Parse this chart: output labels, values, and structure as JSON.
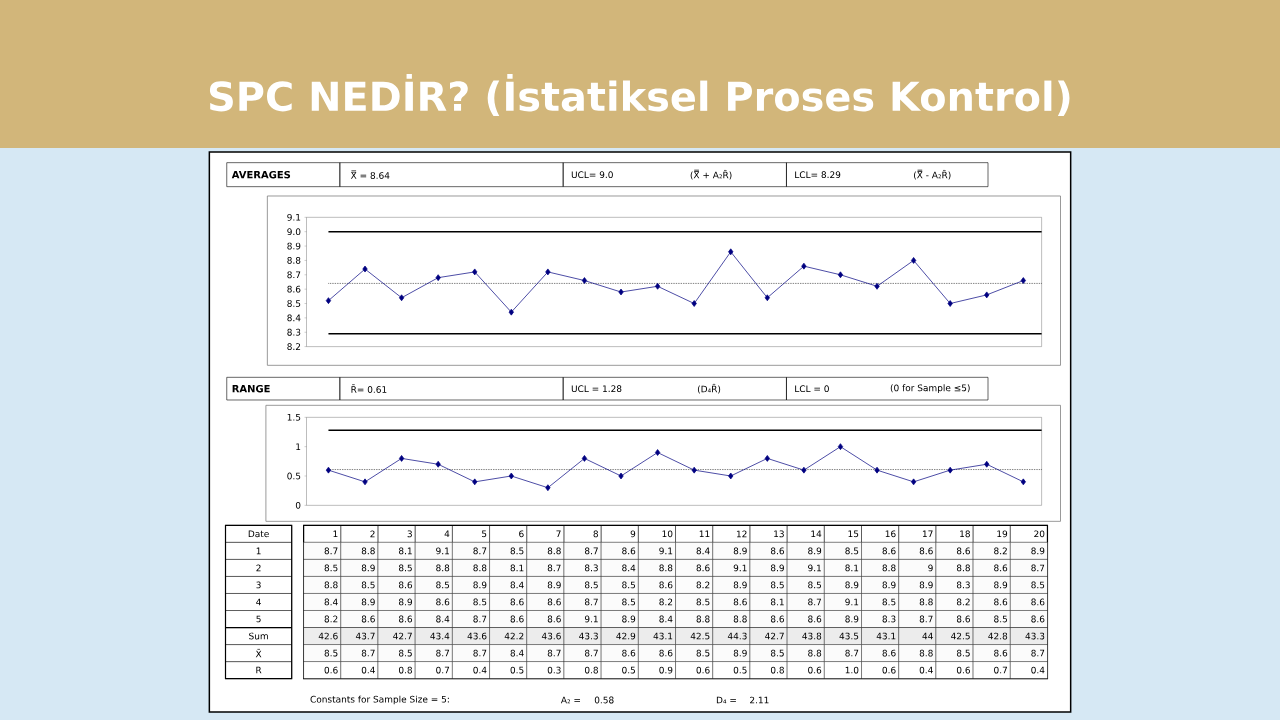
{
  "chart_data": [
    {
      "type": "line",
      "title": "SPC NEDİR? (İstatiksel Proses Kontrol)",
      "subtitle": "AVERAGES",
      "categories": [
        null,
        null,
        null,
        null,
        null,
        null,
        null,
        null,
        null,
        null,
        null,
        null,
        null,
        null,
        null,
        null,
        null,
        null,
        null,
        null
      ],
      "series": [
        {
          "color": "#000080",
          "values": [
            8.52,
            8.74,
            8.54,
            8.68,
            8.72,
            8.44,
            8.72,
            8.66,
            8.58,
            8.62,
            8.5,
            8.86,
            8.54,
            8.76,
            8.7,
            8.62,
            8.8,
            8.5,
            8.56,
            8.66
          ]
        }
      ],
      "ylim": [
        8.2,
        9.1
      ],
      "yticks": [
        8.2,
        8.3,
        8.4,
        8.5,
        8.6,
        8.7,
        8.8,
        8.9,
        {
          "value": 9,
          "label": "9.0"
        },
        9.1
      ],
      "tick_labels": "y",
      "marker": "diamond",
      "line_style": "solid",
      "ref_lines": [
        {
          "axis": "y",
          "value": 9.0,
          "color": "#000000",
          "line_style": "solid"
        },
        {
          "axis": "y",
          "value": 8.29,
          "color": "#000000",
          "line_style": "solid"
        },
        {
          "axis": "y",
          "value": 8.64,
          "color": "#000000",
          "line_style": "dotted"
        }
      ],
      "annotations": [
        "X̿ = 8.64",
        "UCL= 9.0",
        "(X̿ + A₂R̄)",
        "LCL= 8.29",
        "(X̿ - A₂R̄)"
      ]
    },
    {
      "type": "line",
      "title": "RANGE",
      "categories": [
        null,
        null,
        null,
        null,
        null,
        null,
        null,
        null,
        null,
        null,
        null,
        null,
        null,
        null,
        null,
        null,
        null,
        null,
        null,
        null
      ],
      "series": [
        {
          "color": "#000080",
          "values": [
            0.6,
            0.4,
            0.8,
            0.7,
            0.4,
            0.5,
            0.3,
            0.8,
            0.5,
            0.9,
            0.6,
            0.5,
            0.8,
            0.6,
            1.0,
            0.6,
            0.4,
            0.6,
            0.7,
            0.4
          ]
        }
      ],
      "ylim": [
        0,
        1.5
      ],
      "yticks": [
        0,
        0.5,
        1,
        1.5
      ],
      "tick_labels": "y",
      "marker": "diamond",
      "line_style": "solid",
      "ref_lines": [
        {
          "axis": "y",
          "value": 1.28,
          "color": "#000000",
          "line_style": "solid"
        },
        {
          "axis": "y",
          "value": 0.61,
          "color": "#000000",
          "line_style": "dotted"
        }
      ],
      "annotations": [
        "R̄= 0.61",
        "UCL = 1.28",
        "(D₄R̄)",
        "LCL = 0",
        "(0 for Sample ≤5)"
      ]
    },
    {
      "type": "heatmap",
      "ylabel": "Date",
      "categories": [
        "1",
        "2",
        "3",
        "4",
        "5",
        "6",
        "7",
        "8",
        "9",
        "10",
        "11",
        "12",
        "13",
        "14",
        "15",
        "16",
        "17",
        "18",
        "19",
        "20"
      ],
      "y_categories": [
        "1",
        "2",
        "3",
        "4",
        "5",
        "Sum",
        "X̄",
        "R"
      ],
      "cells": [
        [
          8.7,
          8.8,
          8.1,
          9.1,
          8.7,
          8.5,
          8.8,
          8.7,
          8.6,
          9.1,
          8.4,
          8.9,
          8.6,
          8.9,
          8.5,
          8.6,
          8.6,
          8.6,
          8.2,
          8.9
        ],
        [
          8.5,
          8.9,
          8.5,
          8.8,
          8.8,
          8.1,
          8.7,
          8.3,
          8.4,
          8.8,
          8.6,
          9.1,
          8.9,
          9.1,
          8.1,
          8.8,
          9,
          8.8,
          8.6,
          8.7
        ],
        [
          8.8,
          8.5,
          8.6,
          8.5,
          8.9,
          8.4,
          8.9,
          8.5,
          8.5,
          8.6,
          8.2,
          8.9,
          8.5,
          8.5,
          8.9,
          8.9,
          8.9,
          8.3,
          8.9,
          8.5
        ],
        [
          8.4,
          8.9,
          8.9,
          8.6,
          8.5,
          8.6,
          8.6,
          8.7,
          8.5,
          8.2,
          8.5,
          8.6,
          8.1,
          8.7,
          9.1,
          8.5,
          8.8,
          8.2,
          8.6,
          8.6
        ],
        [
          8.2,
          8.6,
          8.6,
          8.4,
          8.7,
          8.6,
          8.6,
          9.1,
          8.9,
          8.4,
          8.8,
          8.8,
          8.6,
          8.6,
          8.9,
          8.3,
          8.7,
          8.6,
          8.5,
          8.6
        ],
        [
          42.6,
          43.7,
          42.7,
          43.4,
          43.6,
          42.2,
          43.6,
          43.3,
          42.9,
          43.1,
          42.5,
          44.3,
          42.7,
          43.8,
          43.5,
          43.1,
          44,
          42.5,
          42.8,
          43.3
        ],
        [
          8.5,
          8.7,
          8.5,
          8.7,
          8.7,
          8.4,
          8.7,
          8.7,
          8.6,
          8.6,
          8.5,
          8.9,
          8.5,
          8.8,
          8.7,
          8.6,
          8.8,
          8.5,
          8.6,
          8.7
        ],
        [
          0.6,
          0.4,
          0.8,
          0.7,
          0.4,
          0.5,
          0.3,
          0.8,
          0.5,
          0.9,
          0.6,
          0.5,
          0.8,
          0.6,
          1.0,
          0.6,
          0.4,
          0.6,
          0.7,
          0.4
        ]
      ],
      "cell_labels": [
        [
          "8.7",
          "8.8",
          "8.1",
          "9.1",
          "8.7",
          "8.5",
          "8.8",
          "8.7",
          "8.6",
          "9.1",
          "8.4",
          "8.9",
          "8.6",
          "8.9",
          "8.5",
          "8.6",
          "8.6",
          "8.6",
          "8.2",
          "8.9"
        ],
        [
          "8.5",
          "8.9",
          "8.5",
          "8.8",
          "8.8",
          "8.1",
          "8.7",
          "8.3",
          "8.4",
          "8.8",
          "8.6",
          "9.1",
          "8.9",
          "9.1",
          "8.1",
          "8.8",
          "9",
          "8.8",
          "8.6",
          "8.7"
        ],
        [
          "8.8",
          "8.5",
          "8.6",
          "8.5",
          "8.9",
          "8.4",
          "8.9",
          "8.5",
          "8.5",
          "8.6",
          "8.2",
          "8.9",
          "8.5",
          "8.5",
          "8.9",
          "8.9",
          "8.9",
          "8.3",
          "8.9",
          "8.5"
        ],
        [
          "8.4",
          "8.9",
          "8.9",
          "8.6",
          "8.5",
          "8.6",
          "8.6",
          "8.7",
          "8.5",
          "8.2",
          "8.5",
          "8.6",
          "8.1",
          "8.7",
          "9.1",
          "8.5",
          "8.8",
          "8.2",
          "8.6",
          "8.6"
        ],
        [
          "8.2",
          "8.6",
          "8.6",
          "8.4",
          "8.7",
          "8.6",
          "8.6",
          "9.1",
          "8.9",
          "8.4",
          "8.8",
          "8.8",
          "8.6",
          "8.6",
          "8.9",
          "8.3",
          "8.7",
          "8.6",
          "8.5",
          "8.6"
        ],
        [
          "42.6",
          "43.7",
          "42.7",
          "43.4",
          "43.6",
          "42.2",
          "43.6",
          "43.3",
          "42.9",
          "43.1",
          "42.5",
          "44.3",
          "42.7",
          "43.8",
          "43.5",
          "43.1",
          "44",
          "42.5",
          "42.8",
          "43.3"
        ],
        [
          "8.5",
          "8.7",
          "8.5",
          "8.7",
          "8.7",
          "8.4",
          "8.7",
          "8.7",
          "8.6",
          "8.6",
          "8.5",
          "8.9",
          "8.5",
          "8.8",
          "8.7",
          "8.6",
          "8.8",
          "8.5",
          "8.6",
          "8.7"
        ],
        [
          "0.6",
          "0.4",
          "0.8",
          "0.7",
          "0.4",
          "0.5",
          "0.3",
          "0.8",
          "0.5",
          "0.9",
          "0.6",
          "0.5",
          "0.8",
          "0.6",
          "1.0",
          "0.6",
          "0.4",
          "0.6",
          "0.7",
          "0.4"
        ]
      ],
      "annotations": [
        "Constants for Sample Size = 5:",
        "A₂ =",
        "0.58",
        "D₄ =",
        "2.11"
      ]
    }
  ]
}
